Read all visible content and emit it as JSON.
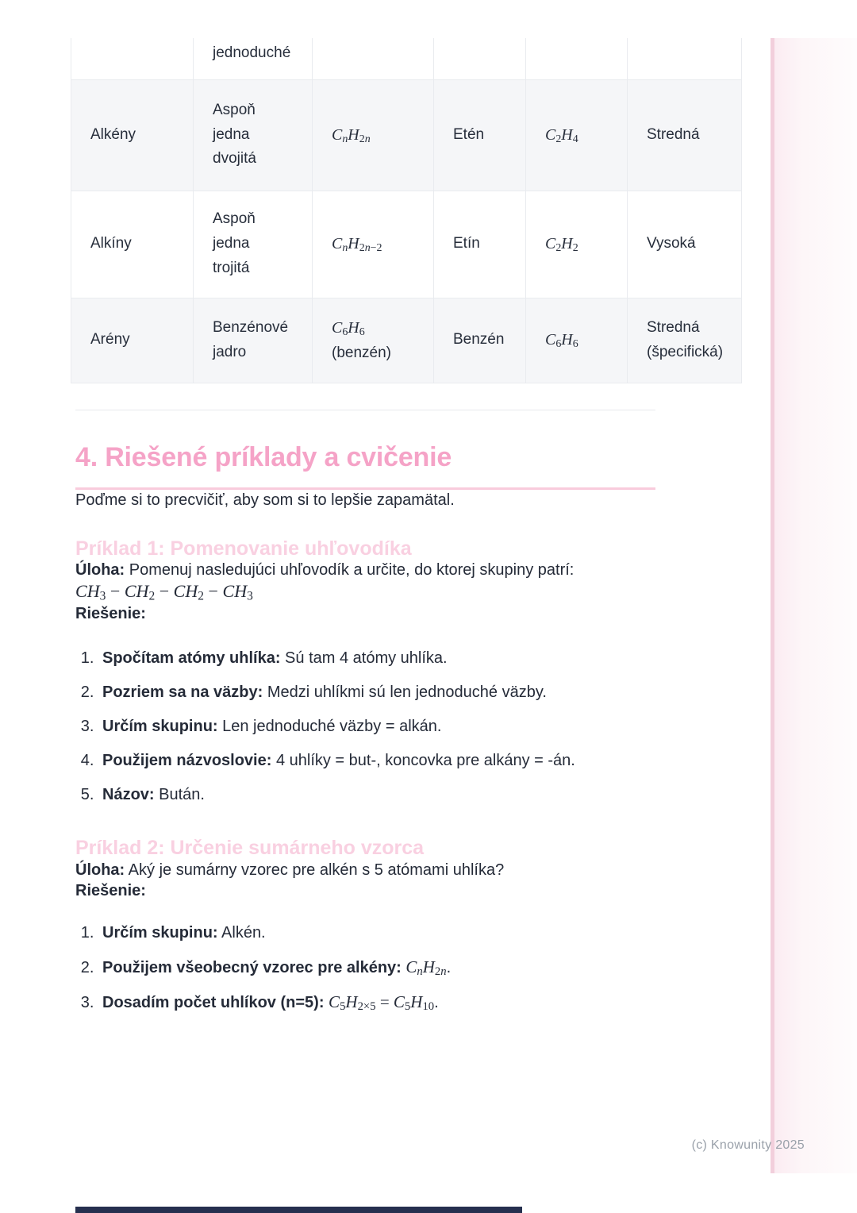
{
  "table": {
    "rows": [
      {
        "group": "",
        "characteristic": "jednoduché",
        "formula": "",
        "example": "",
        "example_formula": "",
        "reactivity": ""
      },
      {
        "group": "Alkény",
        "characteristic": "Aspoň<br>jedna<br>dvojitá",
        "formula": "<span class='math'><i>C</i><sub><i>n</i></sub><i>H</i><sub>2<i>n</i></sub></span>",
        "example": "Etén",
        "example_formula": "<span class='math'><i>C</i><sub>2</sub><i>H</i><sub>4</sub></span>",
        "reactivity": "Stredná"
      },
      {
        "group": "Alkíny",
        "characteristic": "Aspoň<br>jedna<br>trojitá",
        "formula": "<span class='math'><i>C</i><sub><i>n</i></sub><i>H</i><sub>2<i>n</i>−2</sub></span>",
        "example": "Etín",
        "example_formula": "<span class='math'><i>C</i><sub>2</sub><i>H</i><sub>2</sub></span>",
        "reactivity": "Vysoká"
      },
      {
        "group": "Arény",
        "characteristic": "Benzénové<br>jadro",
        "formula": "<span class='math'><i>C</i><sub>6</sub><i>H</i><sub>6</sub></span><br>(benzén)",
        "example": "Benzén",
        "example_formula": "<span class='math'><i>C</i><sub>6</sub><i>H</i><sub>6</sub></span>",
        "reactivity": "Stredná<br>(špecifická)"
      }
    ]
  },
  "section": {
    "heading": "4. Riešené príklady a cvičenie",
    "intro": "Poďme si to precvičiť, aby som si to lepšie zapamätal."
  },
  "example1": {
    "title": "Príklad 1: Pomenovanie uhľovodíka",
    "task_label": "Úloha:",
    "task_text": " Pomenuj nasledujúci uhľovodík a určite, do ktorej skupiny patrí:",
    "formula": "<span class='math'><i>CH</i><sub>3</sub> − <i>CH</i><sub>2</sub> − <i>CH</i><sub>2</sub> − <i>CH</i><sub>3</sub></span>",
    "solution_label": "Riešenie:",
    "steps": [
      {
        "bold": "Spočítam atómy uhlíka:",
        "rest": " Sú tam 4 atómy uhlíka."
      },
      {
        "bold": "Pozriem sa na väzby:",
        "rest": " Medzi uhlíkmi sú len jednoduché väzby."
      },
      {
        "bold": "Určím skupinu:",
        "rest": " Len jednoduché väzby = alkán."
      },
      {
        "bold": "Použijem názvoslovie:",
        "rest": " 4 uhlíky = but-, koncovka pre alkány = -án."
      },
      {
        "bold": "Názov:",
        "rest": " Bután."
      }
    ]
  },
  "example2": {
    "title": "Príklad 2: Určenie sumárneho vzorca",
    "task_label": "Úloha:",
    "task_text": " Aký je sumárny vzorec pre alkén s 5 atómami uhlíka?",
    "solution_label": "Riešenie:",
    "steps": [
      {
        "bold": "Určím skupinu:",
        "rest": " Alkén."
      },
      {
        "bold": "Použijem všeobecný vzorec pre alkény:",
        "rest": " <span class='math'><i>C</i><sub><i>n</i></sub><i>H</i><sub>2<i>n</i></sub></span>."
      },
      {
        "bold": "Dosadím počet uhlíkov (n=5):",
        "rest": " <span class='math'><i>C</i><sub>5</sub><i>H</i><sub>2×5</sub> = <i>C</i><sub>5</sub><i>H</i><sub>10</sub></span>."
      }
    ]
  },
  "footer": {
    "text": "(c) Knowunity 2025"
  }
}
